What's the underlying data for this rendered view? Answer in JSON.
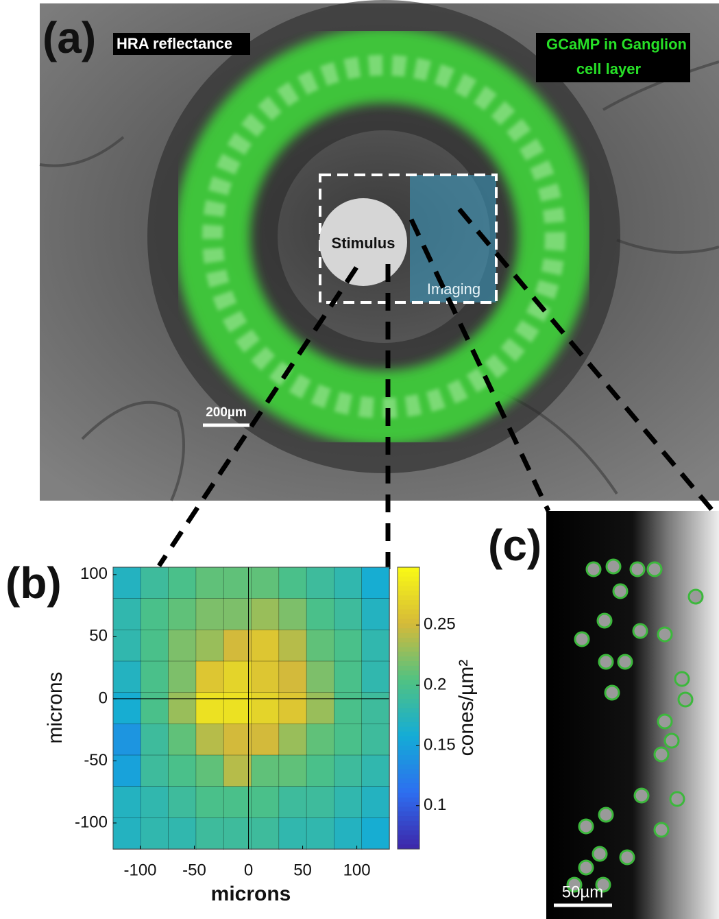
{
  "panel_a": {
    "label": "(a)",
    "left_label": "HRA reflectance",
    "right_label": [
      "GCaMP in Ganglion",
      "cell layer"
    ],
    "stimulus": "Stimulus",
    "imaging": "Imaging",
    "scale_bar": "200µm"
  },
  "panel_b": {
    "label": "(b)"
  },
  "panel_c": {
    "label": "(c)",
    "scale_bar": "50µm"
  },
  "chart_data": {
    "type": "contour",
    "xlabel": "microns",
    "ylabel": "microns",
    "colorbar_label": "cones/µm²",
    "xlim": [
      -125,
      130
    ],
    "ylim": [
      -121,
      106
    ],
    "xticks": [
      -100,
      -50,
      0,
      50,
      100
    ],
    "yticks": [
      100,
      50,
      0,
      -50,
      -100
    ],
    "clim": [
      0.064,
      0.298
    ],
    "cticks": [
      0.1,
      0.15,
      0.2,
      0.25
    ],
    "z": [
      [
        0.17,
        0.19,
        0.2,
        0.21,
        0.21,
        0.21,
        0.2,
        0.19,
        0.18,
        0.16
      ],
      [
        0.18,
        0.2,
        0.21,
        0.22,
        0.22,
        0.23,
        0.22,
        0.2,
        0.19,
        0.17
      ],
      [
        0.18,
        0.2,
        0.22,
        0.23,
        0.25,
        0.26,
        0.24,
        0.21,
        0.2,
        0.18
      ],
      [
        0.17,
        0.2,
        0.22,
        0.26,
        0.27,
        0.26,
        0.25,
        0.22,
        0.2,
        0.18
      ],
      [
        0.16,
        0.2,
        0.23,
        0.28,
        0.28,
        0.27,
        0.26,
        0.23,
        0.2,
        0.19
      ],
      [
        0.14,
        0.19,
        0.21,
        0.24,
        0.25,
        0.25,
        0.23,
        0.21,
        0.2,
        0.19
      ],
      [
        0.15,
        0.19,
        0.2,
        0.21,
        0.24,
        0.21,
        0.21,
        0.2,
        0.19,
        0.18
      ],
      [
        0.17,
        0.18,
        0.19,
        0.2,
        0.2,
        0.2,
        0.19,
        0.19,
        0.18,
        0.17
      ],
      [
        0.17,
        0.18,
        0.18,
        0.19,
        0.19,
        0.19,
        0.18,
        0.18,
        0.17,
        0.16
      ]
    ]
  }
}
